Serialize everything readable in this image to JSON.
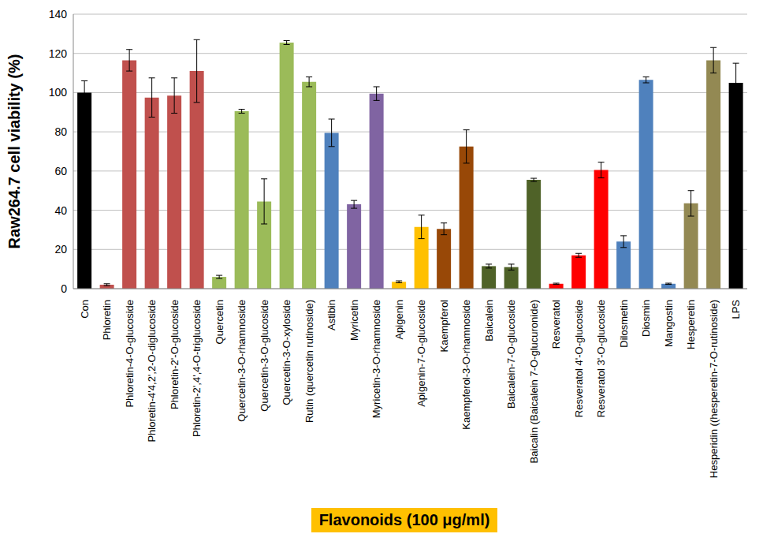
{
  "chart_data": {
    "type": "bar",
    "y_label": "Raw264.7 cell viability (%)",
    "x_label": "Flavonoids (100 μg/ml)",
    "categories": [
      "Con",
      "Phloretin",
      "Phloretin-4-O-glucoside",
      "Phloretin-4'4,2',2-O-diglucoside",
      "Phloretin-2'-O-glucoside",
      "Phloretin-2',4',4-O-triglucoside",
      "Quercetin",
      "Quercetin-3-O-rhamnoside",
      "Quercetin-3-O-glucoside",
      "Quercetin-3-O-xyloside",
      "Rutin (quercetin rutinoside)",
      "Astibin",
      "Myricetin",
      "Myricetin-3-O-rhamnoside",
      "Apigenin",
      "Apigenin-7-O-glucoside",
      "Kaempferol",
      "Kaempferol-3-O-rhamnoside",
      "Baicalein",
      "Baicalein-7-O-glucoside",
      "Baicalin (Baicalein 7-O-glucuronide)",
      "Resveratol",
      "Resveratol 4'-O-glucoside",
      "Resveratol 3'-O-glucoside",
      "Dilosmetin",
      "Diosmin",
      "Mangostin",
      "Hesperetin",
      "Hesperidin ((hesperetin-7-O-rutinoside)",
      "LPS"
    ],
    "values": [
      100,
      2,
      116.5,
      97.5,
      98.5,
      111,
      6,
      90.5,
      44.5,
      125.5,
      105.5,
      79.5,
      43,
      99.5,
      3.5,
      31.5,
      30.5,
      72.5,
      11.5,
      11,
      55.5,
      2.5,
      17,
      60.5,
      24,
      106.5,
      2.5,
      43.5,
      116.5,
      105
    ],
    "errors": [
      6,
      0.5,
      5.5,
      10,
      9,
      16,
      0.8,
      1,
      11.5,
      1,
      2.5,
      7,
      2,
      3.5,
      0.5,
      6,
      3,
      8.5,
      1,
      1.5,
      0.8,
      0.3,
      1,
      4,
      3,
      1.5,
      0.3,
      6.5,
      6.5,
      10
    ],
    "colors": [
      "#000000",
      "#c0504d",
      "#c0504d",
      "#c0504d",
      "#c0504d",
      "#c0504d",
      "#9bbb59",
      "#9bbb59",
      "#9bbb59",
      "#9bbb59",
      "#9bbb59",
      "#4f81bd",
      "#8064a2",
      "#8064a2",
      "#ffc000",
      "#ffc000",
      "#984807",
      "#984807",
      "#4f6228",
      "#4f6228",
      "#4f6228",
      "#ff0000",
      "#ff0000",
      "#ff0000",
      "#4f81bd",
      "#4f81bd",
      "#4f81bd",
      "#938953",
      "#938953",
      "#000000"
    ],
    "ylim": [
      0,
      140
    ],
    "yticks": [
      0,
      20,
      40,
      60,
      80,
      100,
      120,
      140
    ],
    "grid": true
  }
}
